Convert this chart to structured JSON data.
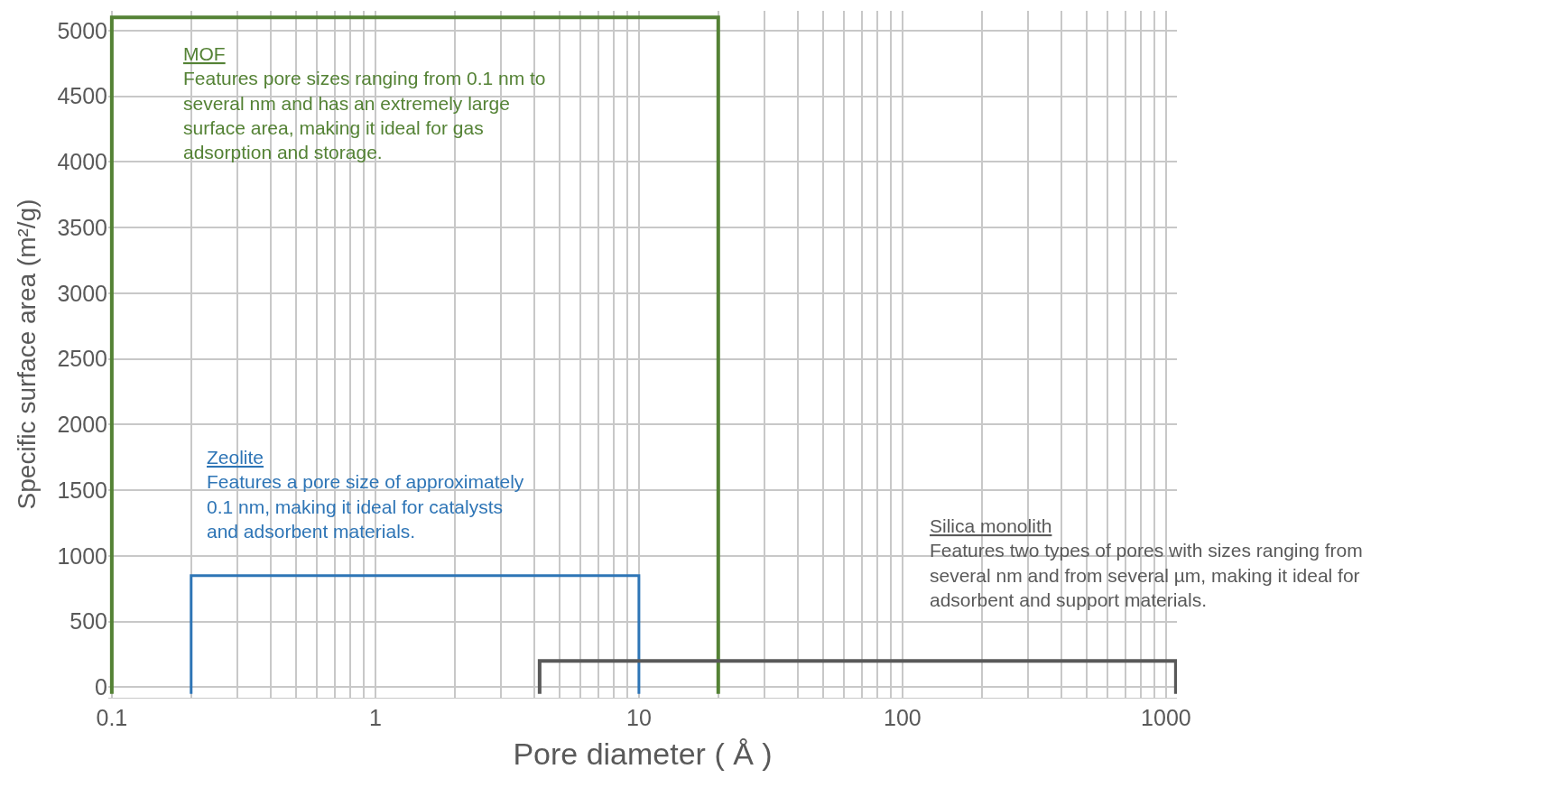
{
  "chart_data": {
    "type": "line",
    "xlabel": "Pore diameter ( Å )",
    "ylabel": "Specific surface area (m²/g)",
    "series": [
      {
        "name": "MOF",
        "color": "#548235",
        "x": [
          0.1,
          0.1,
          20,
          20
        ],
        "values": [
          -50,
          5100,
          5100,
          -50
        ]
      },
      {
        "name": "Zeolite",
        "color": "#2e75b6",
        "x": [
          0.2,
          0.2,
          10,
          10
        ],
        "values": [
          -50,
          850,
          850,
          -50
        ]
      },
      {
        "name": "Silica monolith",
        "color": "#595959",
        "x": [
          4.2,
          4.2,
          1090,
          1090
        ],
        "values": [
          -50,
          200,
          200,
          -50
        ]
      }
    ],
    "annotations": [
      "Features pore sizes ranging from 0.1 nm to several nm and has an extremely large surface area, making it ideal for gas adsorption and storage.",
      "Features a pore size of approximately 0.1 nm, making it ideal for catalysts and adsorbent materials.",
      "Features two types of pores with sizes ranging from several nm and from several µm, making it ideal for adsorbent and support materials."
    ],
    "xlim": [
      0.097,
      1100
    ],
    "ylim": [
      -80,
      5150
    ],
    "log": "x",
    "xticks": [
      0.1,
      1,
      10,
      100,
      1000
    ],
    "yticks": [
      0,
      500,
      1000,
      1500,
      2000,
      2500,
      3000,
      3500,
      4000,
      4500,
      5000
    ],
    "grid": true,
    "legend": false,
    "marker": "none",
    "line_style": "solid"
  }
}
